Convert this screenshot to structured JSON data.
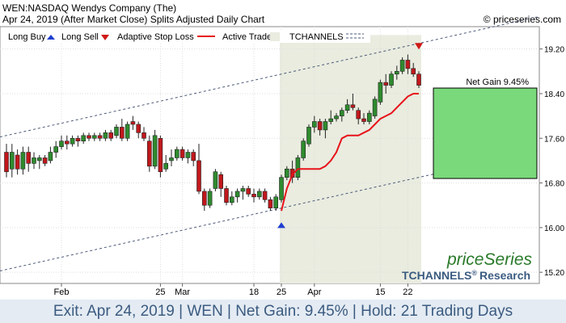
{
  "header": {
    "line1": "WEN:NASDAQ Wendys Company (The)",
    "line2": "Apr 24, 2019 (After Market Close)  Splits Adjusted Daily Chart",
    "credit": "© priceseries.com"
  },
  "legend": {
    "long_buy": "Long Buy",
    "long_sell": "Long Sell",
    "adaptive_stop_loss": "Adaptive Stop Loss",
    "active_trade": "Active Trade",
    "tchannels": "TCHANNELS"
  },
  "branding": {
    "logo": "priceSeries",
    "tchannels": "TCHANNELS",
    "registered": "®",
    "research": "Research"
  },
  "net_gain_label": "Net Gain 9.45%",
  "footer": "Exit: Apr 24, 2019 | WEN | Net Gain: 9.45% | Hold: 21 Trading Days",
  "colors": {
    "up": "#2e8b2e",
    "down": "#c0181c",
    "stop": "#e8121a",
    "active_shade": "#e9ecdf",
    "gain_box": "#7ad97a",
    "channel": "#4a5a78",
    "buy_arrow": "#1f3fd0",
    "sell_arrow": "#d01818"
  },
  "chart_data": {
    "type": "candlestick",
    "y_range": [
      15.0,
      19.6
    ],
    "y_ticks": [
      15.2,
      16.0,
      16.8,
      17.6,
      18.4,
      19.2
    ],
    "x_ticks": [
      {
        "index": 10,
        "label": "Feb"
      },
      {
        "index": 28,
        "label": "25"
      },
      {
        "index": 32,
        "label": "Mar"
      },
      {
        "index": 45,
        "label": "18"
      },
      {
        "index": 50,
        "label": "25"
      },
      {
        "index": 56,
        "label": "Apr"
      },
      {
        "index": 68,
        "label": "15"
      },
      {
        "index": 73,
        "label": "22"
      }
    ],
    "candles": [
      {
        "o": 17.35,
        "h": 17.5,
        "l": 16.9,
        "c": 17.0
      },
      {
        "o": 17.05,
        "h": 17.5,
        "l": 16.9,
        "c": 17.35
      },
      {
        "o": 17.3,
        "h": 17.4,
        "l": 16.95,
        "c": 17.05
      },
      {
        "o": 17.05,
        "h": 17.45,
        "l": 16.95,
        "c": 17.35
      },
      {
        "o": 17.35,
        "h": 17.45,
        "l": 17.0,
        "c": 17.15
      },
      {
        "o": 17.15,
        "h": 17.35,
        "l": 17.05,
        "c": 17.25
      },
      {
        "o": 17.2,
        "h": 17.3,
        "l": 17.05,
        "c": 17.25
      },
      {
        "o": 17.25,
        "h": 17.3,
        "l": 17.1,
        "c": 17.15
      },
      {
        "o": 17.2,
        "h": 17.45,
        "l": 17.15,
        "c": 17.35
      },
      {
        "o": 17.35,
        "h": 17.55,
        "l": 17.25,
        "c": 17.45
      },
      {
        "o": 17.45,
        "h": 17.65,
        "l": 17.4,
        "c": 17.55
      },
      {
        "o": 17.55,
        "h": 17.65,
        "l": 17.4,
        "c": 17.5
      },
      {
        "o": 17.5,
        "h": 17.65,
        "l": 17.45,
        "c": 17.6
      },
      {
        "o": 17.6,
        "h": 17.65,
        "l": 17.45,
        "c": 17.55
      },
      {
        "o": 17.55,
        "h": 17.7,
        "l": 17.5,
        "c": 17.65
      },
      {
        "o": 17.65,
        "h": 17.7,
        "l": 17.55,
        "c": 17.6
      },
      {
        "o": 17.6,
        "h": 17.7,
        "l": 17.55,
        "c": 17.65
      },
      {
        "o": 17.65,
        "h": 17.7,
        "l": 17.55,
        "c": 17.6
      },
      {
        "o": 17.6,
        "h": 17.75,
        "l": 17.55,
        "c": 17.7
      },
      {
        "o": 17.7,
        "h": 17.75,
        "l": 17.55,
        "c": 17.6
      },
      {
        "o": 17.65,
        "h": 17.85,
        "l": 17.6,
        "c": 17.8
      },
      {
        "o": 17.8,
        "h": 17.95,
        "l": 17.55,
        "c": 17.6
      },
      {
        "o": 17.6,
        "h": 17.9,
        "l": 17.55,
        "c": 17.85
      },
      {
        "o": 17.9,
        "h": 18.0,
        "l": 17.75,
        "c": 17.85
      },
      {
        "o": 17.85,
        "h": 17.9,
        "l": 17.6,
        "c": 17.7
      },
      {
        "o": 17.7,
        "h": 17.8,
        "l": 17.55,
        "c": 17.6
      },
      {
        "o": 17.55,
        "h": 17.65,
        "l": 17.0,
        "c": 17.1
      },
      {
        "o": 17.1,
        "h": 17.75,
        "l": 17.05,
        "c": 17.65
      },
      {
        "o": 17.6,
        "h": 17.65,
        "l": 16.9,
        "c": 17.0
      },
      {
        "o": 17.05,
        "h": 17.3,
        "l": 17.0,
        "c": 17.15
      },
      {
        "o": 17.2,
        "h": 17.4,
        "l": 17.1,
        "c": 17.25
      },
      {
        "o": 17.25,
        "h": 17.45,
        "l": 17.2,
        "c": 17.4
      },
      {
        "o": 17.4,
        "h": 17.45,
        "l": 17.2,
        "c": 17.25
      },
      {
        "o": 17.25,
        "h": 17.4,
        "l": 17.15,
        "c": 17.35
      },
      {
        "o": 17.35,
        "h": 17.4,
        "l": 17.1,
        "c": 17.2
      },
      {
        "o": 17.2,
        "h": 17.5,
        "l": 16.6,
        "c": 16.65
      },
      {
        "o": 16.65,
        "h": 16.7,
        "l": 16.3,
        "c": 16.4
      },
      {
        "o": 16.4,
        "h": 16.7,
        "l": 16.35,
        "c": 16.65
      },
      {
        "o": 16.7,
        "h": 17.05,
        "l": 16.65,
        "c": 17.0
      },
      {
        "o": 16.95,
        "h": 17.0,
        "l": 16.55,
        "c": 16.7
      },
      {
        "o": 16.7,
        "h": 16.75,
        "l": 16.4,
        "c": 16.45
      },
      {
        "o": 16.45,
        "h": 16.65,
        "l": 16.4,
        "c": 16.55
      },
      {
        "o": 16.55,
        "h": 16.7,
        "l": 16.45,
        "c": 16.65
      },
      {
        "o": 16.65,
        "h": 16.75,
        "l": 16.5,
        "c": 16.7
      },
      {
        "o": 16.7,
        "h": 16.75,
        "l": 16.55,
        "c": 16.6
      },
      {
        "o": 16.6,
        "h": 16.7,
        "l": 16.45,
        "c": 16.55
      },
      {
        "o": 16.55,
        "h": 16.7,
        "l": 16.5,
        "c": 16.65
      },
      {
        "o": 16.65,
        "h": 16.7,
        "l": 16.45,
        "c": 16.5
      },
      {
        "o": 16.5,
        "h": 16.55,
        "l": 16.3,
        "c": 16.35
      },
      {
        "o": 16.35,
        "h": 16.6,
        "l": 16.3,
        "c": 16.55
      },
      {
        "o": 16.5,
        "h": 16.95,
        "l": 16.45,
        "c": 16.9
      },
      {
        "o": 16.9,
        "h": 17.1,
        "l": 16.85,
        "c": 17.05
      },
      {
        "o": 17.05,
        "h": 17.2,
        "l": 16.8,
        "c": 16.9
      },
      {
        "o": 16.9,
        "h": 17.3,
        "l": 16.85,
        "c": 17.25
      },
      {
        "o": 17.25,
        "h": 17.6,
        "l": 17.2,
        "c": 17.55
      },
      {
        "o": 17.5,
        "h": 17.85,
        "l": 17.45,
        "c": 17.8
      },
      {
        "o": 17.8,
        "h": 18.0,
        "l": 17.7,
        "c": 17.9
      },
      {
        "o": 17.9,
        "h": 17.95,
        "l": 17.65,
        "c": 17.75
      },
      {
        "o": 17.75,
        "h": 17.95,
        "l": 17.6,
        "c": 17.9
      },
      {
        "o": 17.9,
        "h": 18.1,
        "l": 17.85,
        "c": 17.95
      },
      {
        "o": 17.95,
        "h": 18.05,
        "l": 17.9,
        "c": 18.0
      },
      {
        "o": 18.0,
        "h": 18.15,
        "l": 17.9,
        "c": 18.1
      },
      {
        "o": 18.1,
        "h": 18.3,
        "l": 18.05,
        "c": 18.2
      },
      {
        "o": 18.2,
        "h": 18.4,
        "l": 18.1,
        "c": 18.15
      },
      {
        "o": 18.1,
        "h": 18.15,
        "l": 17.85,
        "c": 17.95
      },
      {
        "o": 17.95,
        "h": 18.05,
        "l": 17.85,
        "c": 17.9
      },
      {
        "o": 17.9,
        "h": 18.1,
        "l": 17.85,
        "c": 18.05
      },
      {
        "o": 18.0,
        "h": 18.35,
        "l": 17.95,
        "c": 18.3
      },
      {
        "o": 18.25,
        "h": 18.65,
        "l": 18.2,
        "c": 18.6
      },
      {
        "o": 18.6,
        "h": 18.75,
        "l": 18.4,
        "c": 18.55
      },
      {
        "o": 18.55,
        "h": 18.8,
        "l": 18.5,
        "c": 18.75
      },
      {
        "o": 18.75,
        "h": 18.9,
        "l": 18.65,
        "c": 18.8
      },
      {
        "o": 18.8,
        "h": 19.05,
        "l": 18.75,
        "c": 19.0
      },
      {
        "o": 19.0,
        "h": 19.1,
        "l": 18.75,
        "c": 18.85
      },
      {
        "o": 18.85,
        "h": 18.95,
        "l": 18.7,
        "c": 18.75
      },
      {
        "o": 18.75,
        "h": 18.8,
        "l": 18.5,
        "c": 18.55
      }
    ],
    "stop_loss": {
      "start_index": 50,
      "values": [
        16.3,
        16.7,
        16.95,
        17.05,
        17.05,
        17.05,
        17.05,
        17.05,
        17.1,
        17.2,
        17.35,
        17.6,
        17.65,
        17.65,
        17.65,
        17.7,
        17.75,
        17.85,
        17.95,
        18.0,
        18.05,
        18.15,
        18.25,
        18.35,
        18.4,
        18.4
      ]
    },
    "active_trade": {
      "start_index": 50,
      "end_index": 75
    },
    "channel": {
      "upper": [
        {
          "index": 0,
          "value": 17.65
        },
        {
          "index": 75,
          "value": 19.3
        }
      ],
      "lower": [
        {
          "index": 0,
          "value": 15.25
        },
        {
          "index": 75,
          "value": 16.9
        }
      ]
    },
    "signals": {
      "buy": {
        "index": 50,
        "value": 16.05
      },
      "sell": {
        "index": 75,
        "value": 19.25
      }
    },
    "net_gain_box": {
      "top": 18.5,
      "bottom": 16.88
    }
  }
}
